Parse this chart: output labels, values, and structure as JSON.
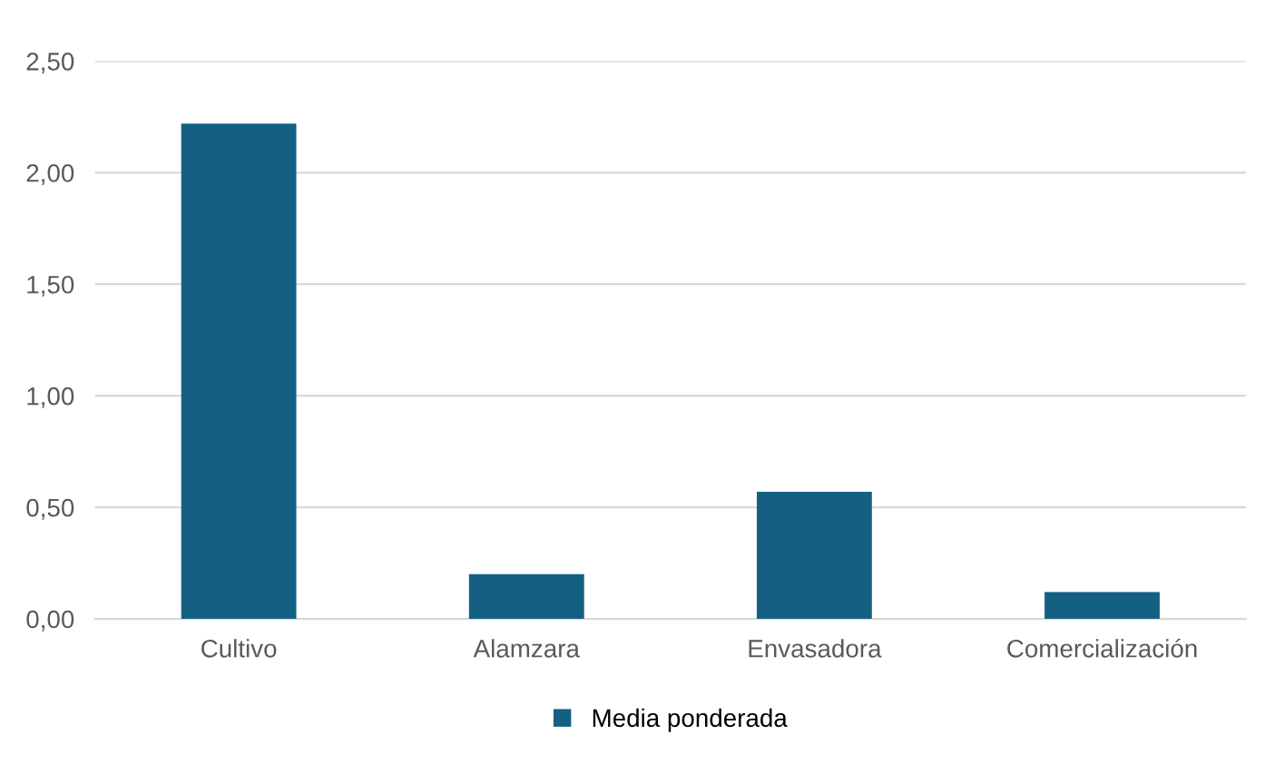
{
  "chart_data": {
    "type": "bar",
    "categories": [
      "Cultivo",
      "Alamzara",
      "Envasadora",
      "Comercialización"
    ],
    "series": [
      {
        "name": "Media ponderada",
        "color": "#156082",
        "values": [
          2.22,
          0.2,
          0.57,
          0.12
        ]
      }
    ],
    "ylim": [
      0,
      2.5
    ],
    "yticks": [
      {
        "value": 0,
        "label": "0,00"
      },
      {
        "value": 0.5,
        "label": "0,50"
      },
      {
        "value": 1,
        "label": "1,00"
      },
      {
        "value": 1.5,
        "label": "1,50"
      },
      {
        "value": 2,
        "label": "2,00"
      },
      {
        "value": 2.5,
        "label": "2,50"
      }
    ],
    "grid": "y",
    "legend": "bottom"
  }
}
